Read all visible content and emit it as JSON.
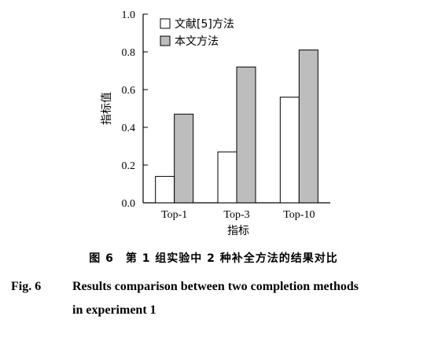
{
  "chart_data": {
    "type": "bar",
    "categories": [
      "Top-1",
      "Top-3",
      "Top-10"
    ],
    "series": [
      {
        "name": "文献[5]方法",
        "values": [
          0.14,
          0.27,
          0.56
        ],
        "color": "#ffffff"
      },
      {
        "name": "本文方法",
        "values": [
          0.47,
          0.72,
          0.81
        ],
        "color": "#bdbdbd"
      }
    ],
    "ylim": [
      0,
      1.0
    ],
    "yticks": [
      "0.0",
      "0.2",
      "0.4",
      "0.6",
      "0.8",
      "1.0"
    ],
    "xlabel": "指标",
    "ylabel": "指标值",
    "legend_position": "top-left",
    "grid": false
  },
  "caption": {
    "cn": "图 6　第 1 组实验中 2 种补全方法的结果对比",
    "en_fig": "Fig. 6",
    "en_line1": "Results comparison between two completion methods",
    "en_line2": "in experiment 1"
  }
}
